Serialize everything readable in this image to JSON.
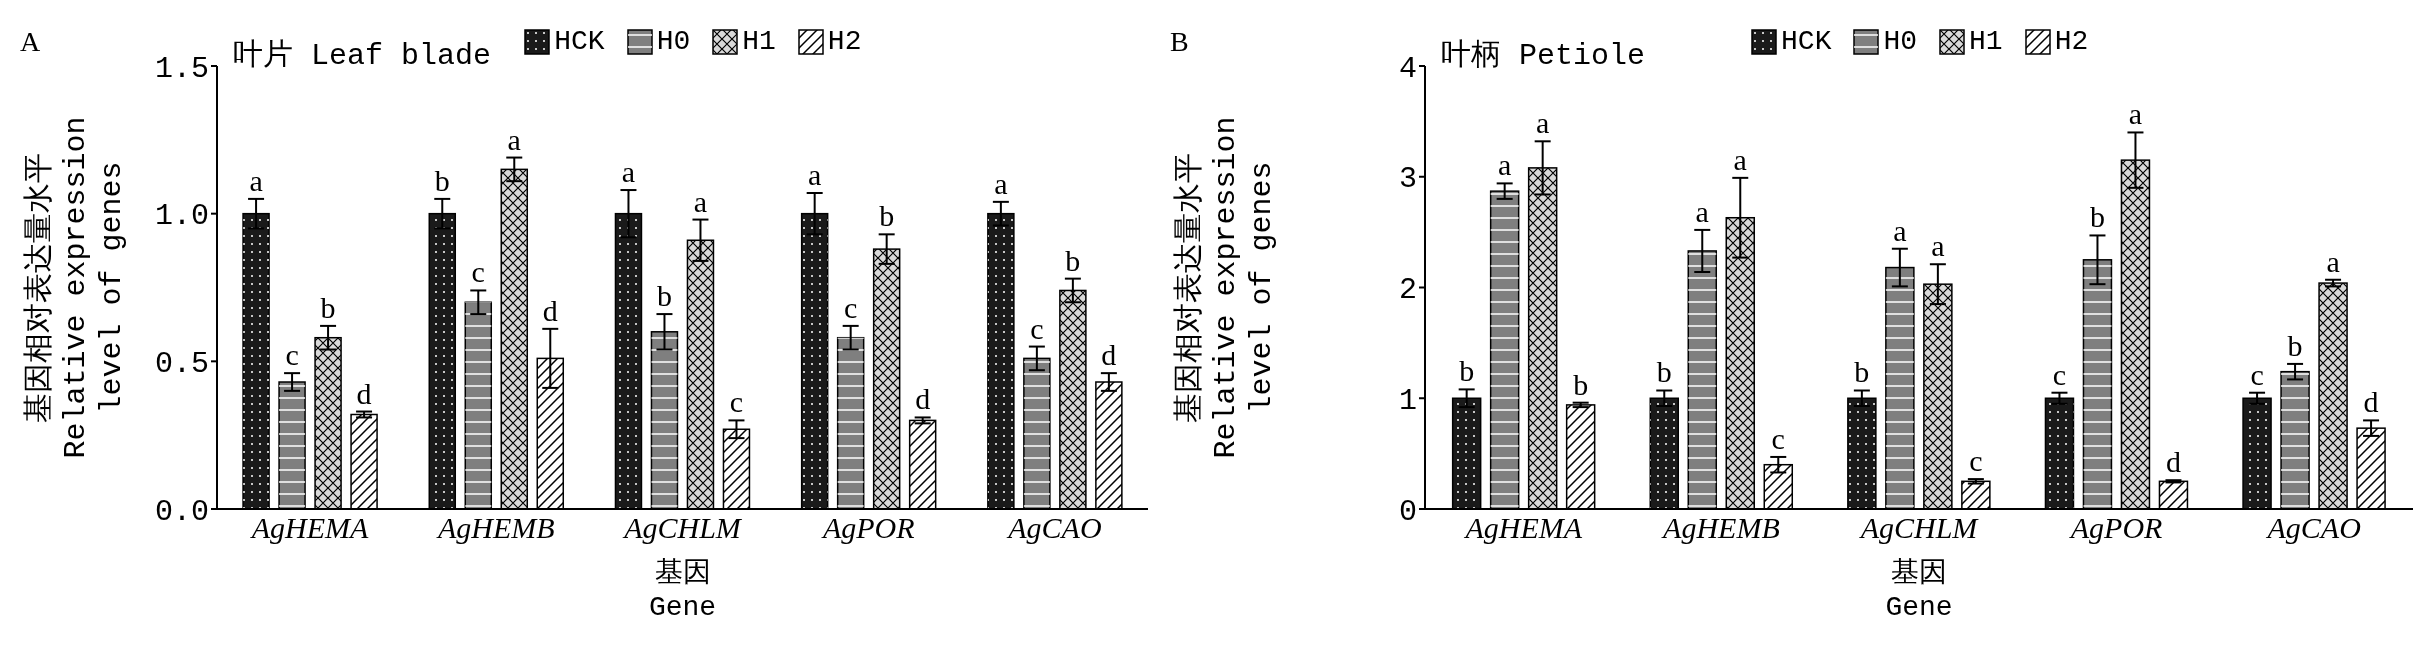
{
  "chart_data": [
    {
      "type": "bar",
      "title": "叶片 Leaf blade",
      "ylabel": "基因相对表达量水平\nRelative expression\nlevel of genes",
      "xlabel": "基因\nGene",
      "annotations": [
        "A"
      ],
      "categories": [
        "AgHEMA",
        "AgHEMB",
        "AgCHLM",
        "AgPOR",
        "AgCAO"
      ],
      "series": [
        {
          "name": "HCK",
          "color": "#1a1a1a",
          "values": [
            1.0,
            1.0,
            1.0,
            1.0,
            1.0
          ],
          "errors": [
            0.05,
            0.05,
            0.08,
            0.07,
            0.04
          ],
          "value_labels": [
            "a",
            "b",
            "a",
            "a",
            "a"
          ]
        },
        {
          "name": "H0",
          "color": "#7f7f7f",
          "values": [
            0.43,
            0.7,
            0.6,
            0.58,
            0.51
          ],
          "errors": [
            0.03,
            0.04,
            0.06,
            0.04,
            0.04
          ],
          "value_labels": [
            "c",
            "c",
            "b",
            "c",
            "c"
          ]
        },
        {
          "name": "H1",
          "color": "#d9d9d9",
          "values": [
            0.58,
            1.15,
            0.91,
            0.88,
            0.74
          ],
          "errors": [
            0.04,
            0.04,
            0.07,
            0.05,
            0.04
          ],
          "value_labels": [
            "b",
            "a",
            "a",
            "b",
            "b"
          ]
        },
        {
          "name": "H2",
          "color": "#ffffff",
          "values": [
            0.32,
            0.51,
            0.27,
            0.3,
            0.43
          ],
          "errors": [
            0.01,
            0.1,
            0.03,
            0.01,
            0.03
          ],
          "value_labels": [
            "d",
            "d",
            "c",
            "d",
            "d"
          ]
        }
      ],
      "ylim": [
        0,
        1.5
      ],
      "yticks": [
        {
          "value": 0,
          "label": "0.0"
        },
        {
          "value": 0.5,
          "label": "0.5"
        },
        {
          "value": 1,
          "label": "1.0"
        },
        {
          "value": 1.5,
          "label": "1.5"
        }
      ],
      "legend": "top right"
    },
    {
      "type": "bar",
      "title": "叶柄 Petiole",
      "ylabel": "基因相对表达量水平\nRelative expression\nlevel of genes",
      "xlabel": "基因\nGene",
      "annotations": [
        "B"
      ],
      "categories": [
        "AgHEMA",
        "AgHEMB",
        "AgCHLM",
        "AgPOR",
        "AgCAO"
      ],
      "series": [
        {
          "name": "HCK",
          "color": "#1a1a1a",
          "values": [
            1.0,
            1.0,
            1.0,
            1.0,
            1.0
          ],
          "errors": [
            0.08,
            0.07,
            0.07,
            0.05,
            0.05
          ],
          "value_labels": [
            "b",
            "b",
            "b",
            "c",
            "c"
          ]
        },
        {
          "name": "H0",
          "color": "#7f7f7f",
          "values": [
            2.87,
            2.33,
            2.18,
            2.25,
            1.24
          ],
          "errors": [
            0.07,
            0.19,
            0.17,
            0.22,
            0.07
          ],
          "value_labels": [
            "a",
            "a",
            "a",
            "b",
            "b"
          ]
        },
        {
          "name": "H1",
          "color": "#d9d9d9",
          "values": [
            3.08,
            2.63,
            2.03,
            3.15,
            2.04
          ],
          "errors": [
            0.24,
            0.36,
            0.18,
            0.25,
            0.03
          ],
          "value_labels": [
            "a",
            "a",
            "a",
            "a",
            "a"
          ]
        },
        {
          "name": "H2",
          "color": "#ffffff",
          "values": [
            0.94,
            0.4,
            0.25,
            0.25,
            0.73
          ],
          "errors": [
            0.02,
            0.07,
            0.02,
            0.01,
            0.07
          ],
          "value_labels": [
            "b",
            "c",
            "c",
            "d",
            "d"
          ]
        }
      ],
      "ylim": [
        0,
        4
      ],
      "yticks": [
        0,
        1,
        2,
        3,
        4
      ],
      "legend": "top right"
    }
  ]
}
